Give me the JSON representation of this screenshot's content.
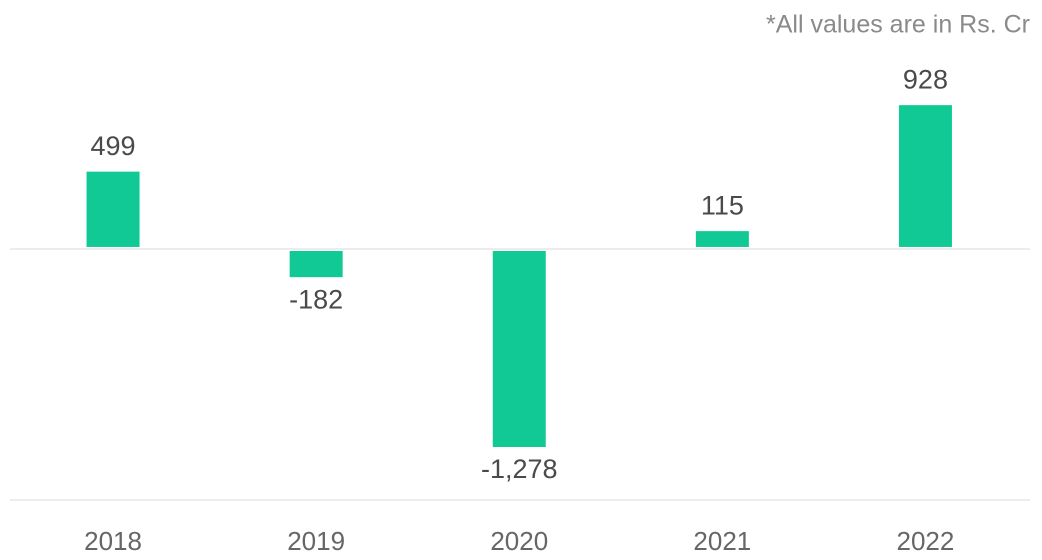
{
  "chart_data": {
    "type": "bar",
    "note": "*All values are in Rs. Cr",
    "categories": [
      "2018",
      "2019",
      "2020",
      "2021",
      "2022"
    ],
    "values": [
      499,
      -182,
      -1278,
      115,
      928
    ],
    "value_labels": [
      "499",
      "-182",
      "-1,278",
      "115",
      "928"
    ],
    "color": "#10c994",
    "ylim": [
      -1620,
      1000
    ]
  }
}
